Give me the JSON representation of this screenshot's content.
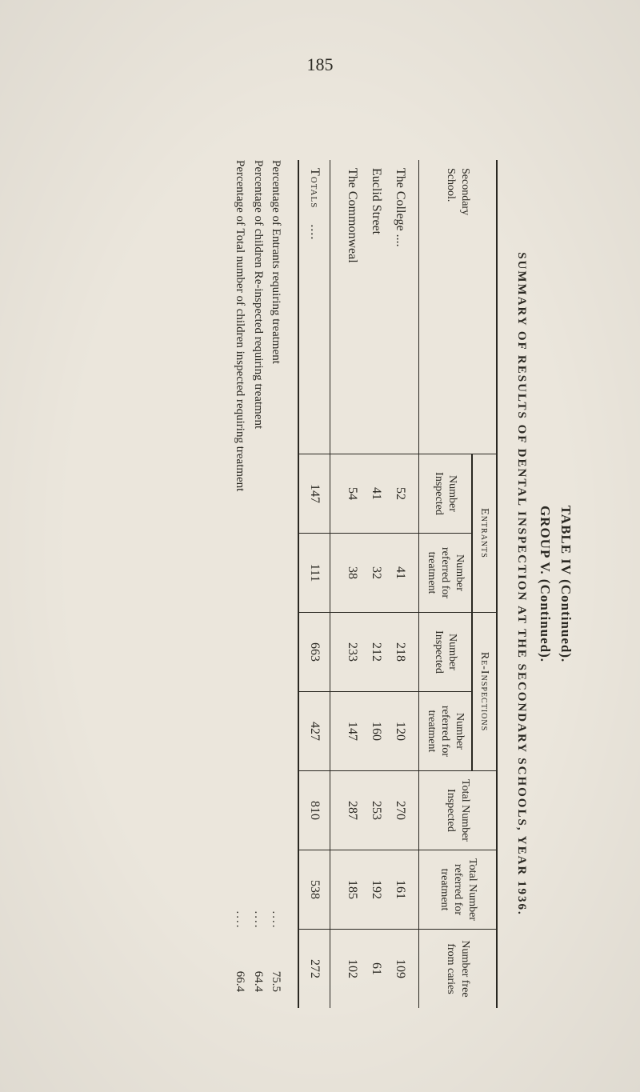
{
  "page_number": "185",
  "titles": {
    "line1": "TABLE IV (Continued).",
    "line2": "GROUP V. (Continued).",
    "line3": "SUMMARY OF RESULTS OF DENTAL INSPECTION AT THE SECONDARY SCHOOLS, YEAR 1936."
  },
  "table": {
    "corner_label_1": "Secondary",
    "corner_label_2": "School.",
    "group_entrants": "Entrants",
    "group_reinsp": "Re-Inspections",
    "col_num_insp": "Number Inspected",
    "col_num_ref": "Number referred for treatment",
    "col_tot_insp": "Total Number Inspected",
    "col_tot_ref": "Total Number referred for treatment",
    "col_free": "Number free from caries",
    "rows": [
      {
        "name": "The College ....",
        "e_insp": "52",
        "e_ref": "41",
        "r_insp": "218",
        "r_ref": "120",
        "t_insp": "270",
        "t_ref": "161",
        "free": "109"
      },
      {
        "name": "Euclid Street",
        "e_insp": "41",
        "e_ref": "32",
        "r_insp": "212",
        "r_ref": "160",
        "t_insp": "253",
        "t_ref": "192",
        "free": "61"
      },
      {
        "name": "The Commonweal",
        "e_insp": "54",
        "e_ref": "38",
        "r_insp": "233",
        "r_ref": "147",
        "t_insp": "287",
        "t_ref": "185",
        "free": "102"
      }
    ],
    "totals_label": "Totals",
    "totals": {
      "e_insp": "147",
      "e_ref": "111",
      "r_insp": "663",
      "r_ref": "427",
      "t_insp": "810",
      "t_ref": "538",
      "free": "272"
    }
  },
  "footnotes": {
    "lines": [
      {
        "label": "Percentage of Entrants requiring treatment",
        "dots": "....",
        "value": "75.5"
      },
      {
        "label": "Percentage of children Re-inspected requiring treatment",
        "dots": "....",
        "value": "64.4"
      },
      {
        "label": "Percentage of Total number of children inspected requiring treatment",
        "dots": "....",
        "value": "66.4"
      }
    ]
  },
  "colors": {
    "paper": "#ebe6dc",
    "ink": "#2a2822"
  }
}
